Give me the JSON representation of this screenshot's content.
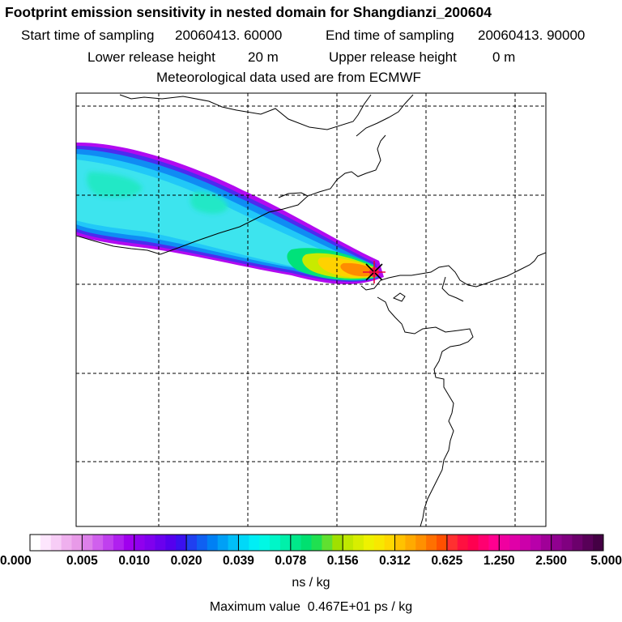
{
  "title": "Footprint emission sensitivity in nested domain for Shangdianzi_200604",
  "sampling": {
    "start_label": "Start time of sampling",
    "start_value": "20060413. 60000",
    "end_label": "End time of sampling",
    "end_value": "20060413. 90000"
  },
  "release": {
    "lower_label": "Lower release height",
    "lower_value": "20 m",
    "upper_label": "Upper release height",
    "upper_value": "0 m"
  },
  "met_note": "Meteorological data used are from ECMWF",
  "station_marker": {
    "symbol": "asterisk",
    "color": "#e8003a"
  },
  "colorbar": {
    "ticks": [
      "0.000",
      "0.005",
      "0.010",
      "0.020",
      "0.039",
      "0.078",
      "0.156",
      "0.312",
      "0.625",
      "1.250",
      "2.500",
      "5.000"
    ],
    "colors": [
      [
        "#ffffff",
        "#fde6fd",
        "#f7cdf6",
        "#efb0ee",
        "#e89ae8"
      ],
      [
        "#dd80ea",
        "#d060ed",
        "#c040ee",
        "#b020ef",
        "#a000ee"
      ],
      [
        "#9000ee",
        "#7f00ee",
        "#6a00ee",
        "#5500ee",
        "#3b10ef"
      ],
      [
        "#2040f0",
        "#0f60f2",
        "#0080f4",
        "#00a0f6",
        "#00bff8"
      ],
      [
        "#00d8f8",
        "#00eef5",
        "#00f8e4",
        "#00f6c8",
        "#00f0aa"
      ],
      [
        "#00e88a",
        "#00e070",
        "#20e050",
        "#60e030",
        "#a0e000"
      ],
      [
        "#c0e800",
        "#d8ee00",
        "#eef200",
        "#f8e800",
        "#ffd800"
      ],
      [
        "#ffc200",
        "#ffaa00",
        "#ff9000",
        "#ff7000",
        "#ff5000"
      ],
      [
        "#ff3030",
        "#ff1040",
        "#ff0050",
        "#ff0070",
        "#ff0090"
      ],
      [
        "#f000a0",
        "#e000a8",
        "#cc00aa",
        "#b800aa",
        "#a00098"
      ],
      [
        "#900090",
        "#800080",
        "#6c006c",
        "#580058",
        "#440044"
      ]
    ],
    "units": "ns / kg"
  },
  "max_value": {
    "label": "Maximum value",
    "value": "0.467E+01 ps / kg"
  }
}
